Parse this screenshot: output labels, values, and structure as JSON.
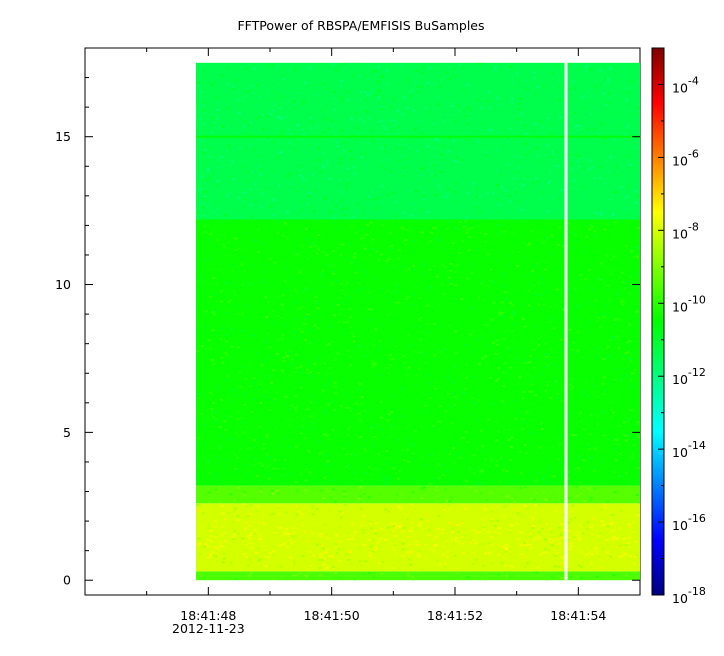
{
  "chart_data": {
    "type": "heatmap",
    "title": "FFTPower of RBSPA/EMFISIS  BuSamples",
    "xlabel": "",
    "ylabel": "",
    "x_range": [
      "18:41:46",
      "18:41:55"
    ],
    "data_x_range": [
      "18:41:47.8",
      "18:41:55"
    ],
    "gap_at": "18:41:53.8",
    "y_range": [
      -0.5,
      18
    ],
    "data_y_range": [
      0,
      17.5
    ],
    "y_ticks": [
      0,
      5,
      10,
      15
    ],
    "x_ticks": [
      {
        "t": "18:41:48",
        "label": "18:41:48",
        "sublabel": "2012-11-23"
      },
      {
        "t": "18:41:50",
        "label": "18:41:50",
        "sublabel": ""
      },
      {
        "t": "18:41:52",
        "label": "18:41:52",
        "sublabel": ""
      },
      {
        "t": "18:41:54",
        "label": "18:41:54",
        "sublabel": ""
      }
    ],
    "colorbar": {
      "scale": "log",
      "range": [
        1e-18,
        0.001
      ],
      "colormap": [
        "#00007f",
        "#0000ff",
        "#007fff",
        "#00ffff",
        "#00ff7f",
        "#00ff00",
        "#7fff00",
        "#ffff00",
        "#ff7f00",
        "#ff0000",
        "#7f0000"
      ],
      "ticks": [
        {
          "base": "10",
          "exp": "-4",
          "value": 0.0001
        },
        {
          "base": "10",
          "exp": "-6",
          "value": 1e-06
        },
        {
          "base": "10",
          "exp": "-8",
          "value": 1e-08
        },
        {
          "base": "10",
          "exp": "-10",
          "value": 1e-10
        },
        {
          "base": "10",
          "exp": "-12",
          "value": 1e-12
        },
        {
          "base": "10",
          "exp": "-14",
          "value": 1e-14
        },
        {
          "base": "10",
          "exp": "-16",
          "value": 1e-16
        },
        {
          "base": "10",
          "exp": "-18",
          "value": 1e-18
        }
      ]
    },
    "bands": [
      {
        "y_from": 0,
        "y_to": 0.3,
        "log_power": -9.6
      },
      {
        "y_from": 0.3,
        "y_to": 2.6,
        "log_power": -8.0
      },
      {
        "y_from": 2.6,
        "y_to": 3.2,
        "log_power": -9.5
      },
      {
        "y_from": 3.2,
        "y_to": 12.2,
        "log_power": -10.4
      },
      {
        "y_from": 12.2,
        "y_to": 17.5,
        "log_power": -11.4
      }
    ],
    "line_feature": {
      "y": 15.0,
      "log_power": -10.6
    }
  }
}
